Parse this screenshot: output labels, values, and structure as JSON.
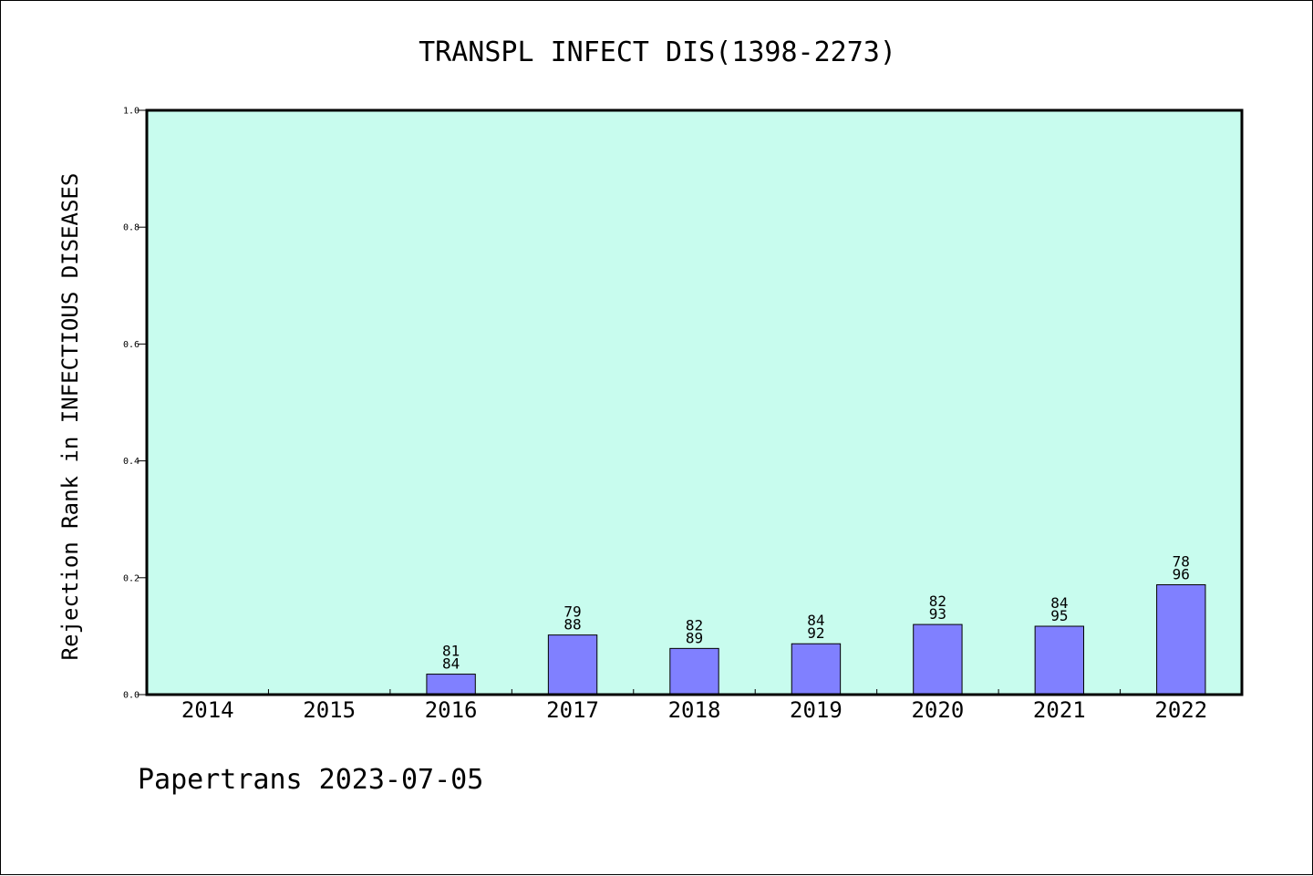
{
  "chart_data": {
    "type": "bar",
    "title": "TRANSPL INFECT DIS(1398-2273)",
    "ylabel": "Rejection Rank in INFECTIOUS DISEASES",
    "xlabel": "",
    "ylim": [
      0,
      1.0
    ],
    "yticks": [
      "0.0",
      "0.2",
      "0.4",
      "0.6",
      "0.8",
      "1.0"
    ],
    "categories": [
      "2014",
      "2015",
      "2016",
      "2017",
      "2018",
      "2019",
      "2020",
      "2021",
      "2022"
    ],
    "values": [
      null,
      null,
      0.035,
      0.102,
      0.079,
      0.087,
      0.12,
      0.117,
      0.188
    ],
    "labels_top": [
      "",
      "",
      "81",
      "79",
      "82",
      "84",
      "82",
      "84",
      "78"
    ],
    "labels_bottom": [
      "",
      "",
      "84",
      "88",
      "89",
      "92",
      "93",
      "95",
      "96"
    ],
    "grid": false,
    "legend": "none",
    "colors": {
      "plot_background": "#c8fcee",
      "bar_fill": "#8080ff",
      "bar_stroke": "#000000"
    }
  },
  "footer": {
    "text": "Papertrans 2023-07-05"
  }
}
